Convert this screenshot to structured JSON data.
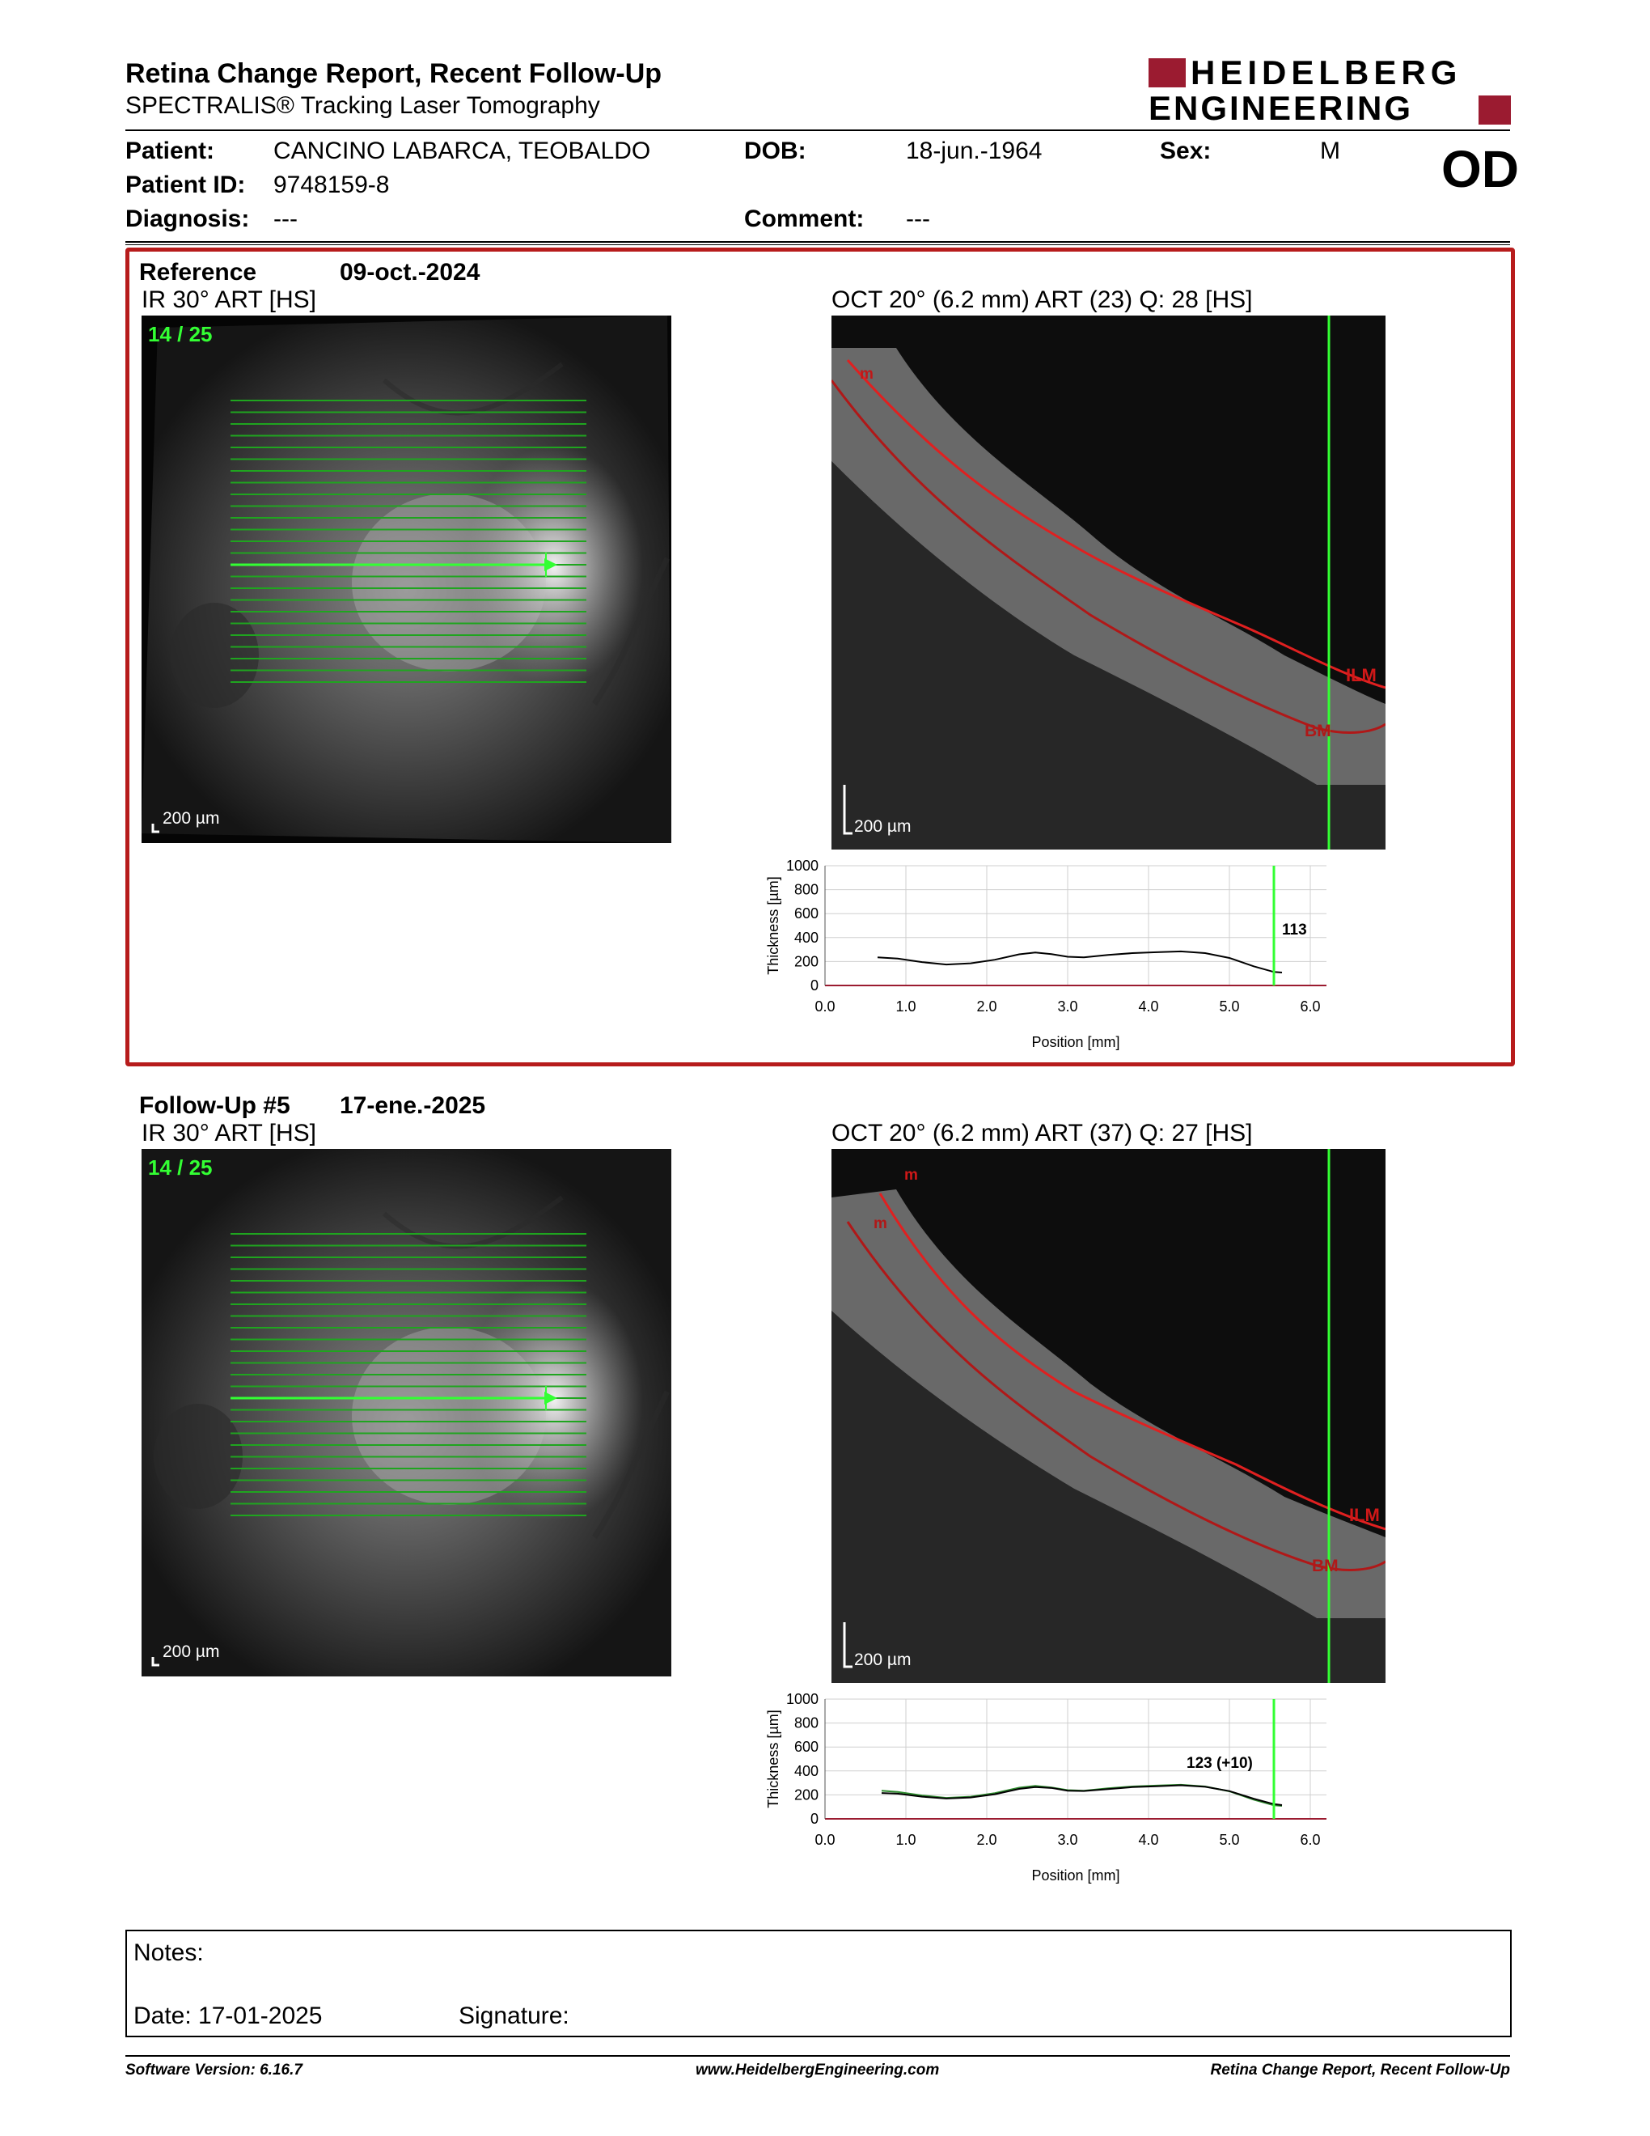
{
  "header": {
    "title": "Retina Change Report, Recent Follow-Up",
    "subtitle": "SPECTRALIS® Tracking Laser Tomography",
    "logo_line1": "HEIDELBERG",
    "logo_line2": "ENGINEERING",
    "brand_color": "#9b1b30"
  },
  "patient": {
    "patient_label": "Patient:",
    "patient_name": "CANCINO LABARCA, TEOBALDO",
    "dob_label": "DOB:",
    "dob": "18-jun.-1964",
    "sex_label": "Sex:",
    "sex": "M",
    "id_label": "Patient ID:",
    "id": "9748159-8",
    "eye": "OD",
    "diagnosis_label": "Diagnosis:",
    "diagnosis": "---",
    "comment_label": "Comment:",
    "comment": "---"
  },
  "reference": {
    "label": "Reference",
    "date": "09-oct.-2024",
    "ir_title": "IR 30° ART [HS]",
    "scan_counter": "14 / 25",
    "ir_scale": "200 µm",
    "oct_title": "OCT 20° (6.2 mm) ART (23) Q: 28 [HS]",
    "oct_scale": "200 µm",
    "layer_labels": [
      "m",
      "ILM",
      "BM"
    ],
    "thickness_label": "113"
  },
  "followup": {
    "label": "Follow-Up #5",
    "date": "17-ene.-2025",
    "ir_title": "IR 30° ART [HS]",
    "scan_counter": "14 / 25",
    "ir_scale": "200 µm",
    "oct_title": "OCT 20° (6.2 mm) ART (37) Q: 27 [HS]",
    "oct_scale": "200 µm",
    "layer_labels": [
      "m",
      "m",
      "ILM",
      "BM"
    ],
    "thickness_label": "123 (+10)"
  },
  "chart_data": [
    {
      "type": "line",
      "xlabel": "Position [mm]",
      "ylabel": "Thickness [µm]",
      "xlim": [
        0,
        6.2
      ],
      "ylim": [
        0,
        1000
      ],
      "xticks": [
        "0.0",
        "1.0",
        "2.0",
        "3.0",
        "4.0",
        "5.0",
        "6.0"
      ],
      "yticks": [
        "0",
        "200",
        "400",
        "600",
        "800",
        "1000"
      ],
      "grid": true,
      "cursor_x": 5.55,
      "series": [
        {
          "x": [
            0.65,
            0.9,
            1.2,
            1.5,
            1.8,
            2.1,
            2.4,
            2.6,
            2.8,
            3.0,
            3.2,
            3.5,
            3.8,
            4.1,
            4.4,
            4.7,
            5.0,
            5.3,
            5.55,
            5.65
          ],
          "y": [
            235,
            225,
            195,
            175,
            185,
            215,
            260,
            275,
            262,
            240,
            235,
            255,
            270,
            278,
            285,
            270,
            230,
            160,
            113,
            108
          ],
          "color": "#000000"
        }
      ],
      "annotation": "113"
    },
    {
      "type": "line",
      "xlabel": "Position [mm]",
      "ylabel": "Thickness [µm]",
      "xlim": [
        0,
        6.2
      ],
      "ylim": [
        0,
        1000
      ],
      "xticks": [
        "0.0",
        "1.0",
        "2.0",
        "3.0",
        "4.0",
        "5.0",
        "6.0"
      ],
      "yticks": [
        "0",
        "200",
        "400",
        "600",
        "800",
        "1000"
      ],
      "grid": true,
      "cursor_x": 5.55,
      "series": [
        {
          "x": [
            0.7,
            0.9,
            1.2,
            1.5,
            1.8,
            2.1,
            2.4,
            2.6,
            2.8,
            3.0,
            3.2,
            3.5,
            3.8,
            4.1,
            4.4,
            4.7,
            5.0,
            5.3,
            5.55,
            5.65
          ],
          "y": [
            235,
            225,
            195,
            175,
            185,
            215,
            260,
            275,
            262,
            240,
            235,
            255,
            270,
            278,
            285,
            270,
            230,
            160,
            113,
            108
          ],
          "color": "#2e8b2e"
        },
        {
          "x": [
            0.7,
            0.9,
            1.2,
            1.5,
            1.8,
            2.1,
            2.4,
            2.6,
            2.8,
            3.0,
            3.2,
            3.5,
            3.8,
            4.1,
            4.4,
            4.7,
            5.0,
            5.3,
            5.55,
            5.65
          ],
          "y": [
            215,
            210,
            185,
            170,
            178,
            205,
            250,
            265,
            258,
            235,
            232,
            248,
            265,
            272,
            280,
            268,
            232,
            168,
            123,
            115
          ],
          "color": "#000000"
        }
      ],
      "annotation": "123 (+10)"
    }
  ],
  "notes": {
    "label": "Notes:",
    "date_label": "Date: 17-01-2025",
    "signature_label": "Signature:"
  },
  "footer": {
    "software": "Software Version: 6.16.7",
    "url": "www.HeidelbergEngineering.com",
    "report": "Retina Change Report, Recent Follow-Up"
  }
}
